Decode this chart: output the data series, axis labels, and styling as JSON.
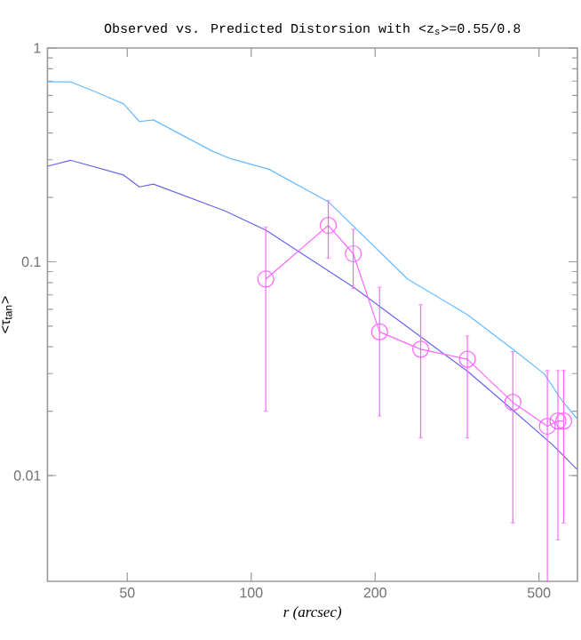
{
  "chart_data": {
    "type": "line",
    "title": "Observed vs. Predicted Distorsion with <z$_{s}$>=0.55/0.8",
    "xlabel": "r (arcsec)",
    "ylabel": "<τ$_{tan}$>",
    "log": "xy",
    "xlim": [
      32,
      620
    ],
    "ylim": [
      0.0032,
      1
    ],
    "xticks": [
      50,
      100,
      200,
      500
    ],
    "yticks": [
      0.01,
      0.1,
      1
    ],
    "series": [
      {
        "color": "#66bbff",
        "marker": "none",
        "x": [
          32,
          36.4,
          42.2,
          49.0,
          53.5,
          57.9,
          80.5,
          89,
          110.4,
          153.9,
          240,
          335,
          436,
          515,
          569,
          618
        ],
        "values": [
          0.695,
          0.695,
          0.62,
          0.548,
          0.453,
          0.461,
          0.329,
          0.304,
          0.271,
          0.191,
          0.083,
          0.0566,
          0.0385,
          0.0299,
          0.0224,
          0.0185
        ]
      },
      {
        "color": "#6666ee",
        "marker": "none",
        "x": [
          32,
          36.4,
          49.0,
          53.5,
          57.9,
          86.1,
          108.6,
          178.4,
          335,
          422.5,
          541,
          618
        ],
        "values": [
          0.28,
          0.2985,
          0.2545,
          0.224,
          0.231,
          0.1735,
          0.1405,
          0.0754,
          0.0308,
          0.021,
          0.01386,
          0.0107
        ]
      },
      {
        "color": "#ff66ff",
        "marker": "circle",
        "x": [
          108.5,
          153.9,
          177,
          205,
          258,
          335,
          432,
          524,
          556,
          574
        ],
        "values": [
          0.083,
          0.148,
          0.109,
          0.047,
          0.039,
          0.035,
          0.022,
          0.017,
          0.018,
          0.018
        ],
        "errors": [
          [
            0.02,
            0.145
          ],
          [
            0.104,
            0.193
          ],
          [
            0.075,
            0.142
          ],
          [
            0.019,
            0.076
          ],
          [
            0.015,
            0.063
          ],
          [
            0.015,
            0.045
          ],
          [
            0.006,
            0.038
          ],
          [
            0.0032,
            0.031
          ],
          [
            0.005,
            0.031
          ],
          [
            0.006,
            0.031
          ]
        ]
      }
    ]
  }
}
